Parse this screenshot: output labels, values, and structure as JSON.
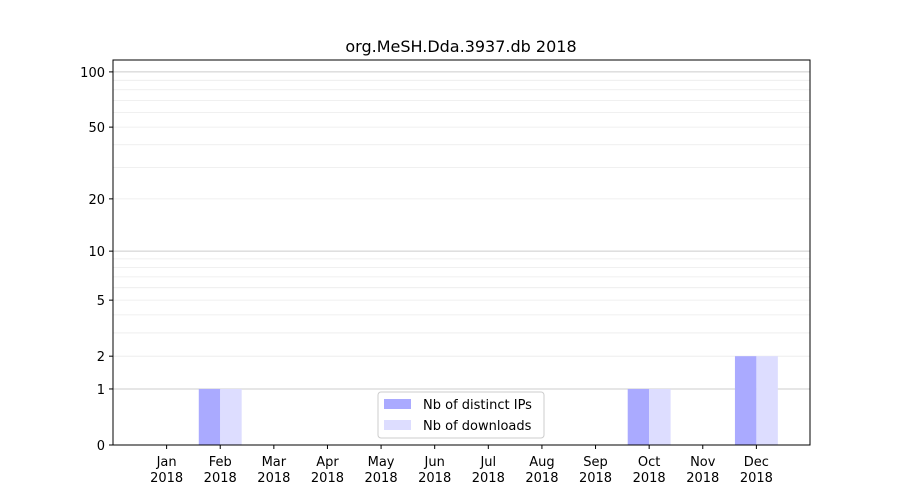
{
  "chart_data": {
    "type": "bar",
    "title": "org.MeSH.Dda.3937.db 2018",
    "xlabel": "",
    "ylabel": "",
    "categories": [
      "Jan\n2018",
      "Feb\n2018",
      "Mar\n2018",
      "Apr\n2018",
      "May\n2018",
      "Jun\n2018",
      "Jul\n2018",
      "Aug\n2018",
      "Sep\n2018",
      "Oct\n2018",
      "Nov\n2018",
      "Dec\n2018"
    ],
    "series": [
      {
        "name": "Nb of distinct IPs",
        "color": "#aaaaff",
        "values": [
          0,
          1,
          0,
          0,
          0,
          0,
          0,
          0,
          0,
          1,
          0,
          2
        ]
      },
      {
        "name": "Nb of downloads",
        "color": "#ddddff",
        "values": [
          0,
          1,
          0,
          0,
          0,
          0,
          0,
          0,
          0,
          1,
          0,
          2
        ]
      }
    ],
    "yscale": "log(1+y)",
    "yticks": [
      0,
      1,
      2,
      5,
      10,
      20,
      50,
      100
    ],
    "ylim": [
      0,
      116
    ],
    "grid": true,
    "legend_position": "lower center"
  }
}
